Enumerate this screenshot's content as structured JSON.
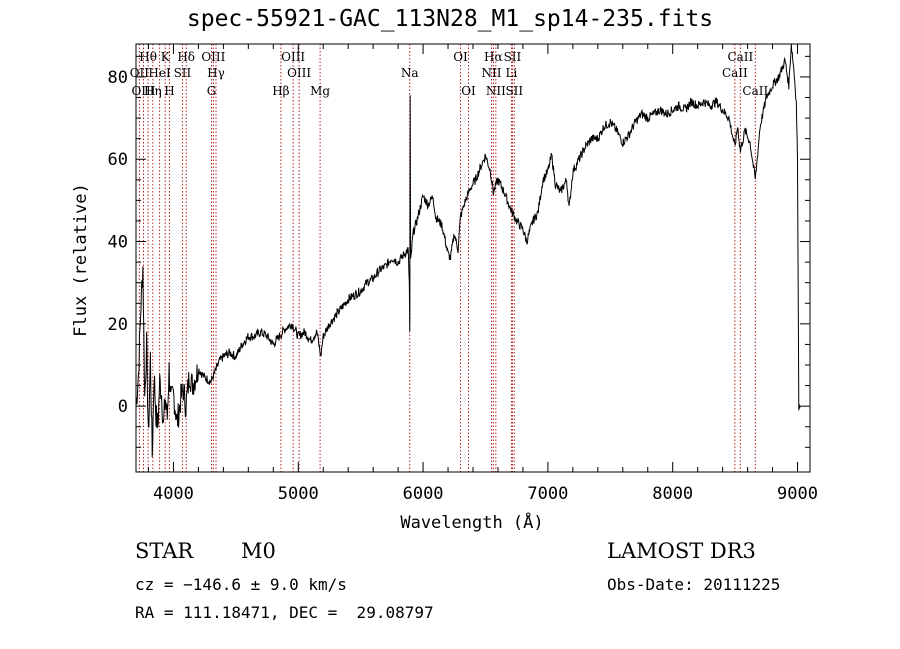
{
  "title": "spec-55921-GAC_113N28_M1_sp14-235.fits",
  "info": {
    "class_label": "STAR",
    "subclass_label": "M0",
    "cz_line": "cz = −146.6 ± 9.0 km/s",
    "radec_line": "RA = 111.18471, DEC =  29.08797",
    "survey_label": "LAMOST DR3",
    "obs_date_line": "Obs-Date: 20111225"
  },
  "colors": {
    "line": "#000000",
    "marker": "#b22222"
  },
  "chart_data": {
    "type": "line",
    "title": "spec-55921-GAC_113N28_M1_sp14-235.fits",
    "xlabel": "Wavelength (Å)",
    "ylabel": "Flux (relative)",
    "xlim": [
      3700,
      9100
    ],
    "ylim": [
      -16,
      88
    ],
    "x_ticks": [
      4000,
      5000,
      6000,
      7000,
      8000,
      9000
    ],
    "y_ticks": [
      0,
      20,
      40,
      60,
      80
    ],
    "x_tick_labels": [
      "4000",
      "5000",
      "6000",
      "7000",
      "8000",
      "9000"
    ],
    "y_tick_labels": [
      "0",
      "20",
      "40",
      "60",
      "80"
    ],
    "series": [
      {
        "name": "flux",
        "points": [
          [
            3700,
            0
          ],
          [
            3720,
            8
          ],
          [
            3740,
            25
          ],
          [
            3755,
            34
          ],
          [
            3770,
            2
          ],
          [
            3785,
            15
          ],
          [
            3800,
            -8
          ],
          [
            3815,
            12
          ],
          [
            3830,
            -12
          ],
          [
            3845,
            8
          ],
          [
            3860,
            -2
          ],
          [
            3875,
            -5
          ],
          [
            3890,
            6
          ],
          [
            3905,
            3
          ],
          [
            3920,
            -5
          ],
          [
            3935,
            2
          ],
          [
            3950,
            -3
          ],
          [
            3965,
            9
          ],
          [
            3980,
            1
          ],
          [
            4000,
            3
          ],
          [
            4030,
            -4
          ],
          [
            4060,
            2
          ],
          [
            4080,
            4
          ],
          [
            4100,
            0
          ],
          [
            4130,
            8
          ],
          [
            4150,
            5
          ],
          [
            4200,
            9
          ],
          [
            4250,
            7
          ],
          [
            4300,
            6
          ],
          [
            4330,
            8
          ],
          [
            4370,
            11
          ],
          [
            4400,
            12
          ],
          [
            4450,
            13
          ],
          [
            4500,
            12
          ],
          [
            4550,
            15
          ],
          [
            4600,
            17
          ],
          [
            4650,
            17
          ],
          [
            4700,
            18
          ],
          [
            4750,
            17
          ],
          [
            4800,
            15
          ],
          [
            4850,
            17
          ],
          [
            4900,
            19
          ],
          [
            4950,
            20
          ],
          [
            5000,
            17
          ],
          [
            5050,
            18
          ],
          [
            5100,
            16
          ],
          [
            5150,
            18
          ],
          [
            5180,
            12
          ],
          [
            5200,
            17
          ],
          [
            5250,
            20
          ],
          [
            5300,
            22
          ],
          [
            5350,
            24
          ],
          [
            5400,
            26
          ],
          [
            5450,
            27
          ],
          [
            5500,
            28
          ],
          [
            5550,
            30
          ],
          [
            5600,
            31
          ],
          [
            5650,
            33
          ],
          [
            5700,
            34
          ],
          [
            5750,
            36
          ],
          [
            5800,
            35
          ],
          [
            5850,
            37
          ],
          [
            5880,
            38
          ],
          [
            5890,
            30
          ],
          [
            5894,
            18
          ],
          [
            5897,
            75
          ],
          [
            5900,
            35
          ],
          [
            5920,
            42
          ],
          [
            5950,
            45
          ],
          [
            6000,
            51
          ],
          [
            6040,
            49
          ],
          [
            6080,
            51
          ],
          [
            6100,
            46
          ],
          [
            6150,
            44
          ],
          [
            6180,
            40
          ],
          [
            6200,
            37
          ],
          [
            6220,
            36
          ],
          [
            6250,
            42
          ],
          [
            6280,
            38
          ],
          [
            6300,
            46
          ],
          [
            6340,
            50
          ],
          [
            6380,
            53
          ],
          [
            6420,
            55
          ],
          [
            6460,
            58
          ],
          [
            6500,
            61
          ],
          [
            6540,
            57
          ],
          [
            6563,
            52
          ],
          [
            6600,
            55
          ],
          [
            6650,
            52
          ],
          [
            6700,
            48
          ],
          [
            6750,
            45
          ],
          [
            6800,
            43
          ],
          [
            6830,
            40
          ],
          [
            6850,
            42
          ],
          [
            6880,
            45
          ],
          [
            6920,
            47
          ],
          [
            6960,
            55
          ],
          [
            7000,
            57
          ],
          [
            7030,
            61
          ],
          [
            7060,
            54
          ],
          [
            7100,
            52
          ],
          [
            7150,
            55
          ],
          [
            7170,
            48
          ],
          [
            7200,
            57
          ],
          [
            7250,
            60
          ],
          [
            7300,
            63
          ],
          [
            7350,
            65
          ],
          [
            7400,
            65
          ],
          [
            7450,
            68
          ],
          [
            7500,
            69
          ],
          [
            7550,
            67
          ],
          [
            7600,
            64
          ],
          [
            7650,
            66
          ],
          [
            7700,
            69
          ],
          [
            7750,
            71
          ],
          [
            7800,
            70
          ],
          [
            7850,
            71
          ],
          [
            7900,
            72
          ],
          [
            7950,
            71
          ],
          [
            8000,
            72
          ],
          [
            8050,
            73
          ],
          [
            8100,
            72
          ],
          [
            8150,
            74
          ],
          [
            8200,
            73
          ],
          [
            8250,
            74
          ],
          [
            8300,
            73
          ],
          [
            8350,
            74
          ],
          [
            8400,
            72
          ],
          [
            8450,
            70
          ],
          [
            8498,
            63
          ],
          [
            8520,
            68
          ],
          [
            8542,
            62
          ],
          [
            8580,
            67
          ],
          [
            8620,
            64
          ],
          [
            8662,
            55
          ],
          [
            8700,
            68
          ],
          [
            8750,
            75
          ],
          [
            8800,
            78
          ],
          [
            8850,
            80
          ],
          [
            8900,
            84
          ],
          [
            8930,
            78
          ],
          [
            8950,
            88
          ],
          [
            8970,
            82
          ],
          [
            8990,
            74
          ],
          [
            9000,
            60
          ],
          [
            9010,
            0
          ],
          [
            9020,
            0
          ]
        ]
      }
    ],
    "line_markers": [
      {
        "label": "Hθ",
        "x": 3797,
        "row": 0
      },
      {
        "label": "OII",
        "x": 3727,
        "row": 1
      },
      {
        "label": "OIII",
        "x": 3760,
        "row": 2
      },
      {
        "label": "Hη",
        "x": 3835,
        "row": 2
      },
      {
        "label": "HeI",
        "x": 3889,
        "row": 1
      },
      {
        "label": "K",
        "x": 3934,
        "row": 0
      },
      {
        "label": "H",
        "x": 3968,
        "row": 2
      },
      {
        "label": "SII",
        "x": 4072,
        "row": 1
      },
      {
        "label": "Hδ",
        "x": 4102,
        "row": 0
      },
      {
        "label": "OIII",
        "x": 4320,
        "row": 0
      },
      {
        "label": "G",
        "x": 4305,
        "row": 2
      },
      {
        "label": "Hγ",
        "x": 4341,
        "row": 1
      },
      {
        "label": "OIII",
        "x": 4959,
        "row": 0
      },
      {
        "label": "OIII",
        "x": 5007,
        "row": 1
      },
      {
        "label": "Hβ",
        "x": 4861,
        "row": 2
      },
      {
        "label": "Mg",
        "x": 5175,
        "row": 2
      },
      {
        "label": "Na",
        "x": 5893,
        "row": 1
      },
      {
        "label": "OI",
        "x": 6300,
        "row": 0
      },
      {
        "label": "OI",
        "x": 6364,
        "row": 2
      },
      {
        "label": "Hα",
        "x": 6563,
        "row": 0
      },
      {
        "label": "NII",
        "x": 6548,
        "row": 1
      },
      {
        "label": "NII",
        "x": 6583,
        "row": 2
      },
      {
        "label": "SII",
        "x": 6716,
        "row": 0
      },
      {
        "label": "Li",
        "x": 6708,
        "row": 1
      },
      {
        "label": "SII",
        "x": 6731,
        "row": 2
      },
      {
        "label": "CaII",
        "x": 8542,
        "row": 0
      },
      {
        "label": "CaII",
        "x": 8498,
        "row": 1
      },
      {
        "label": "CaII",
        "x": 8662,
        "row": 2
      }
    ]
  }
}
